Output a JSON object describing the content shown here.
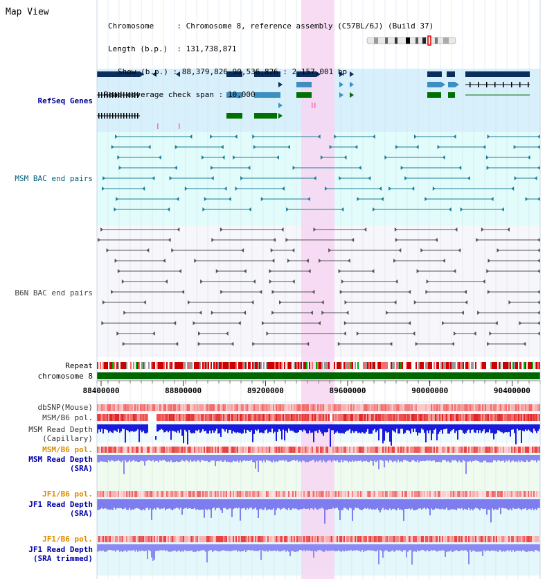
{
  "page": {
    "title": "Map View"
  },
  "info": {
    "chromosome_key": "Chromosome",
    "chromosome_value": "Chromosome 8, reference assembly (C57BL/6J) (Build 37)",
    "length_key": "Length (b.p.)",
    "length_value": "131,738,871",
    "show_key": "Show (b.p.)",
    "show_value": "88,379,826-90,536,826 : 2,157,001 bp",
    "coverage_key": "Read coverage check span",
    "coverage_value": "10,000"
  },
  "tracks": {
    "refseq": "RefSeq Genes",
    "msm_bac": "MSM BAC end pairs",
    "b6n_bac": "B6N BAC end pairs",
    "repeat": "Repeat",
    "chromosome": "chromosome 8",
    "dbsnp": "dbSNP(Mouse)",
    "msm_b6_pol_1": "MSM/B6 pol.",
    "msm_depth_cap_1": "MSM Read Depth",
    "msm_depth_cap_2": "(Capillary)",
    "msm_b6_pol_2": "MSM/B6 pol.",
    "msm_depth_sra_1": "MSM Read Depth",
    "msm_depth_sra_2": "(SRA)",
    "jf1_b6_pol_1": "JF1/B6 pol.",
    "jf1_depth_sra_1": "JF1 Read Depth",
    "jf1_depth_sra_2": "(SRA)",
    "jf1_b6_pol_2": "JF1/B6 pol.",
    "jf1_depth_trim_1": "JF1 Read Depth",
    "jf1_depth_trim_2": "(SRA trimmed)"
  },
  "axis": {
    "ticks": [
      "88400000",
      "88800000",
      "89200000",
      "89600000",
      "90000000",
      "90400000"
    ]
  },
  "colors": {
    "highlight": "#f7d6f2",
    "refseq_bg": "#d8f0fb",
    "msm_bg": "#e2fbfb",
    "b6n_bg": "#f6f6fb",
    "msm_label": "#005f7a",
    "b6n_label": "#444444",
    "refseq_label": "#000099",
    "pol_label": "#e08a00",
    "depth_label": "#0000aa",
    "chrom_bar": "#006600"
  }
}
